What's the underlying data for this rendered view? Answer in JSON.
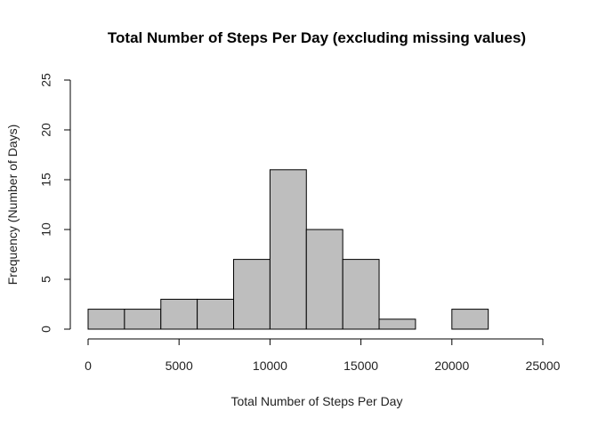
{
  "chart_data": {
    "type": "bar",
    "subtype": "histogram",
    "title": "Total Number of Steps Per Day (excluding missing values)",
    "xlabel": "Total Number of Steps Per Day",
    "ylabel": "Frequency (Number of Days)",
    "bins": [
      {
        "start": 0,
        "end": 2000,
        "count": 2
      },
      {
        "start": 2000,
        "end": 4000,
        "count": 2
      },
      {
        "start": 4000,
        "end": 6000,
        "count": 3
      },
      {
        "start": 6000,
        "end": 8000,
        "count": 3
      },
      {
        "start": 8000,
        "end": 10000,
        "count": 7
      },
      {
        "start": 10000,
        "end": 12000,
        "count": 16
      },
      {
        "start": 12000,
        "end": 14000,
        "count": 10
      },
      {
        "start": 14000,
        "end": 16000,
        "count": 7
      },
      {
        "start": 16000,
        "end": 18000,
        "count": 1
      },
      {
        "start": 18000,
        "end": 20000,
        "count": 0
      },
      {
        "start": 20000,
        "end": 22000,
        "count": 2
      }
    ],
    "xlim": [
      0,
      25000
    ],
    "ylim": [
      0,
      25
    ],
    "xticks": [
      "0",
      "5000",
      "10000",
      "15000",
      "20000",
      "25000"
    ],
    "yticks": [
      "0",
      "5",
      "10",
      "15",
      "20",
      "25"
    ],
    "bar_color": "#bebebe",
    "grid": false,
    "legend": "none"
  }
}
